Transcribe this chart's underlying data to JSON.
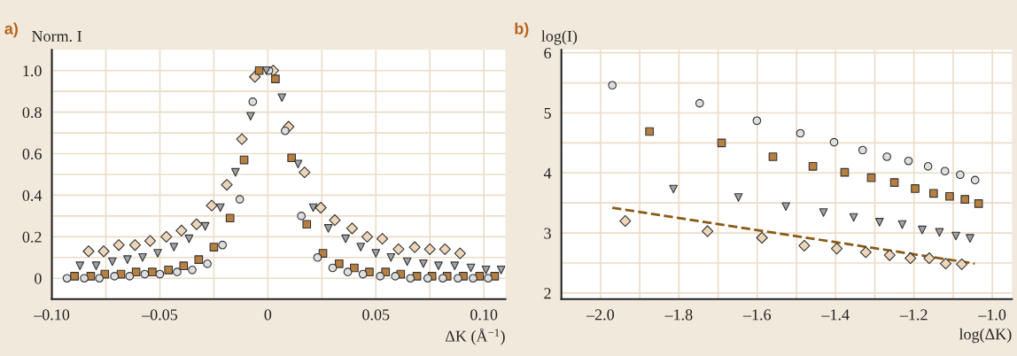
{
  "chart_data": [
    {
      "type": "scatter",
      "title": "a)",
      "ylabel": "Norm. I",
      "xlabel": "ΔK (Å$^{−1}$)",
      "xlim": [
        -0.1,
        0.11
      ],
      "ylim": [
        -0.1,
        1.1
      ],
      "xticks": [
        {
          "value": -0.1,
          "label": "–0.10"
        },
        {
          "value": -0.075,
          "label": null
        },
        {
          "value": -0.05,
          "label": "–0.05"
        },
        {
          "value": -0.025,
          "label": null
        },
        0,
        {
          "value": 0.025,
          "label": null
        },
        {
          "value": 0.05,
          "label": "0.05"
        },
        {
          "value": 0.075,
          "label": null
        },
        {
          "value": 0.1,
          "label": "0.10"
        }
      ],
      "yticks": [
        0,
        {
          "value": 0.1,
          "label": null
        },
        0.2,
        {
          "value": 0.3,
          "label": null
        },
        0.4,
        {
          "value": 0.5,
          "label": null
        },
        0.6,
        {
          "value": 0.7,
          "label": null
        },
        0.8,
        {
          "value": 0.9,
          "label": null
        },
        {
          "value": 1.0,
          "label": "1.0"
        }
      ],
      "grid": true,
      "series": [
        {
          "marker": "diamond",
          "color": "#ecd5b8",
          "x": [
            -0.083,
            -0.076,
            -0.069,
            -0.0615,
            -0.0545,
            -0.047,
            -0.04,
            -0.033,
            -0.026,
            -0.019,
            -0.012,
            -0.006,
            0.0025,
            0.0096,
            0.017,
            0.0245,
            0.031,
            0.039,
            0.046,
            0.053,
            0.0605,
            0.068,
            0.075,
            0.082,
            0.089
          ],
          "values": [
            0.13,
            0.13,
            0.16,
            0.16,
            0.18,
            0.2,
            0.23,
            0.26,
            0.35,
            0.45,
            0.67,
            0.97,
            1.0,
            0.73,
            0.51,
            0.34,
            0.28,
            0.24,
            0.2,
            0.19,
            0.14,
            0.15,
            0.14,
            0.14,
            0.12
          ]
        },
        {
          "marker": "square",
          "color": "#b88040",
          "x": [
            -0.0895,
            -0.082,
            -0.0755,
            -0.068,
            -0.061,
            -0.0535,
            -0.046,
            -0.039,
            -0.032,
            -0.025,
            -0.0175,
            -0.011,
            -0.004,
            0.0035,
            0.011,
            0.018,
            0.0255,
            0.033,
            0.04,
            0.047,
            0.0545,
            0.0615,
            0.069,
            0.076,
            0.083,
            0.0905,
            0.098,
            0.105
          ],
          "values": [
            0.01,
            0.01,
            0.02,
            0.02,
            0.03,
            0.03,
            0.04,
            0.06,
            0.09,
            0.15,
            0.29,
            0.57,
            1.0,
            0.96,
            0.58,
            0.26,
            0.12,
            0.07,
            0.05,
            0.03,
            0.03,
            0.02,
            0.01,
            0.01,
            0.01,
            0.01,
            0.01,
            0.01
          ]
        },
        {
          "marker": "circle",
          "color": "#dcdee0",
          "x": [
            -0.093,
            -0.085,
            -0.078,
            -0.071,
            -0.064,
            -0.057,
            -0.05,
            -0.042,
            -0.035,
            -0.028,
            -0.021,
            -0.013,
            -0.007,
            0.0005,
            0.008,
            0.0155,
            0.023,
            0.03,
            0.037,
            0.044,
            0.052,
            0.059,
            0.066,
            0.074,
            0.081,
            0.088,
            0.095,
            0.102
          ],
          "values": [
            0.0,
            0.0,
            0.0,
            0.01,
            0.01,
            0.02,
            0.02,
            0.03,
            0.04,
            0.07,
            0.16,
            0.38,
            0.85,
            1.0,
            0.71,
            0.3,
            0.1,
            0.05,
            0.03,
            0.02,
            0.01,
            0.01,
            0.0,
            0.0,
            0.0,
            0.0,
            0.0,
            0.0
          ]
        },
        {
          "marker": "triangle",
          "color": "#a0a4a8",
          "x": [
            -0.087,
            -0.0795,
            -0.072,
            -0.065,
            -0.058,
            -0.051,
            -0.0435,
            -0.0365,
            -0.029,
            -0.022,
            -0.015,
            -0.008,
            -0.0007,
            0.0065,
            0.014,
            0.021,
            0.028,
            0.036,
            0.043,
            0.05,
            0.057,
            0.0645,
            0.072,
            0.079,
            0.0865,
            0.094,
            0.101,
            0.108
          ],
          "values": [
            0.06,
            0.06,
            0.08,
            0.09,
            0.1,
            0.12,
            0.15,
            0.19,
            0.25,
            0.34,
            0.51,
            0.78,
            1.0,
            0.87,
            0.55,
            0.34,
            0.24,
            0.19,
            0.15,
            0.12,
            0.1,
            0.08,
            0.07,
            0.06,
            0.06,
            0.05,
            0.04,
            0.04
          ]
        }
      ]
    },
    {
      "type": "scatter",
      "title": "b)",
      "ylabel": "log(I)",
      "xlabel": "log(ΔK)",
      "xlim": [
        -2.1,
        -0.95
      ],
      "ylim": [
        1.9,
        6.05
      ],
      "xticks": [
        {
          "value": -2.0,
          "label": "–2.0"
        },
        {
          "value": -1.9,
          "label": null
        },
        {
          "value": -1.8,
          "label": "–1.8"
        },
        {
          "value": -1.7,
          "label": null
        },
        {
          "value": -1.6,
          "label": "–1.6"
        },
        {
          "value": -1.5,
          "label": null
        },
        {
          "value": -1.4,
          "label": "–1.4"
        },
        {
          "value": -1.3,
          "label": null
        },
        {
          "value": -1.2,
          "label": "–1.2"
        },
        {
          "value": -1.1,
          "label": null
        },
        {
          "value": -1.0,
          "label": "–1.0"
        }
      ],
      "yticks": [
        2,
        {
          "value": 2.5,
          "label": null
        },
        3,
        {
          "value": 3.5,
          "label": null
        },
        4,
        {
          "value": 4.5,
          "label": null
        },
        5,
        {
          "value": 5.5,
          "label": null
        },
        6
      ],
      "grid": true,
      "series": [
        {
          "type": "line",
          "line_style": "dashed",
          "marker": "none",
          "color": "#8b5a14",
          "x": [
            -1.97,
            -1.045
          ],
          "values": [
            3.42,
            2.49
          ]
        },
        {
          "marker": "circle",
          "color": "#dcdee0",
          "x": [
            -1.97,
            -1.747,
            -1.601,
            -1.49,
            -1.404,
            -1.331,
            -1.269,
            -1.214,
            -1.164,
            -1.121,
            -1.082,
            -1.044
          ],
          "values": [
            5.46,
            5.16,
            4.87,
            4.66,
            4.51,
            4.38,
            4.27,
            4.2,
            4.11,
            4.03,
            3.97,
            3.88
          ]
        },
        {
          "marker": "square",
          "color": "#b88040",
          "x": [
            -1.875,
            -1.691,
            -1.56,
            -1.458,
            -1.377,
            -1.309,
            -1.25,
            -1.197,
            -1.15,
            -1.109,
            -1.07,
            -1.035
          ],
          "values": [
            4.69,
            4.5,
            4.27,
            4.11,
            4.01,
            3.92,
            3.84,
            3.74,
            3.66,
            3.61,
            3.56,
            3.49
          ]
        },
        {
          "marker": "triangle",
          "color": "#a0a4a8",
          "x": [
            -1.814,
            -1.648,
            -1.527,
            -1.431,
            -1.354,
            -1.288,
            -1.23,
            -1.179,
            -1.135,
            -1.093,
            -1.057
          ],
          "values": [
            3.73,
            3.59,
            3.44,
            3.34,
            3.26,
            3.18,
            3.14,
            3.05,
            3.01,
            2.95,
            2.91
          ]
        },
        {
          "marker": "diamond",
          "color": "#ecd5b8",
          "x": [
            -1.937,
            -1.727,
            -1.588,
            -1.48,
            -1.397,
            -1.323,
            -1.262,
            -1.209,
            -1.161,
            -1.119,
            -1.078
          ],
          "values": [
            3.2,
            3.03,
            2.92,
            2.79,
            2.74,
            2.68,
            2.63,
            2.58,
            2.58,
            2.49,
            2.48
          ]
        }
      ]
    }
  ]
}
